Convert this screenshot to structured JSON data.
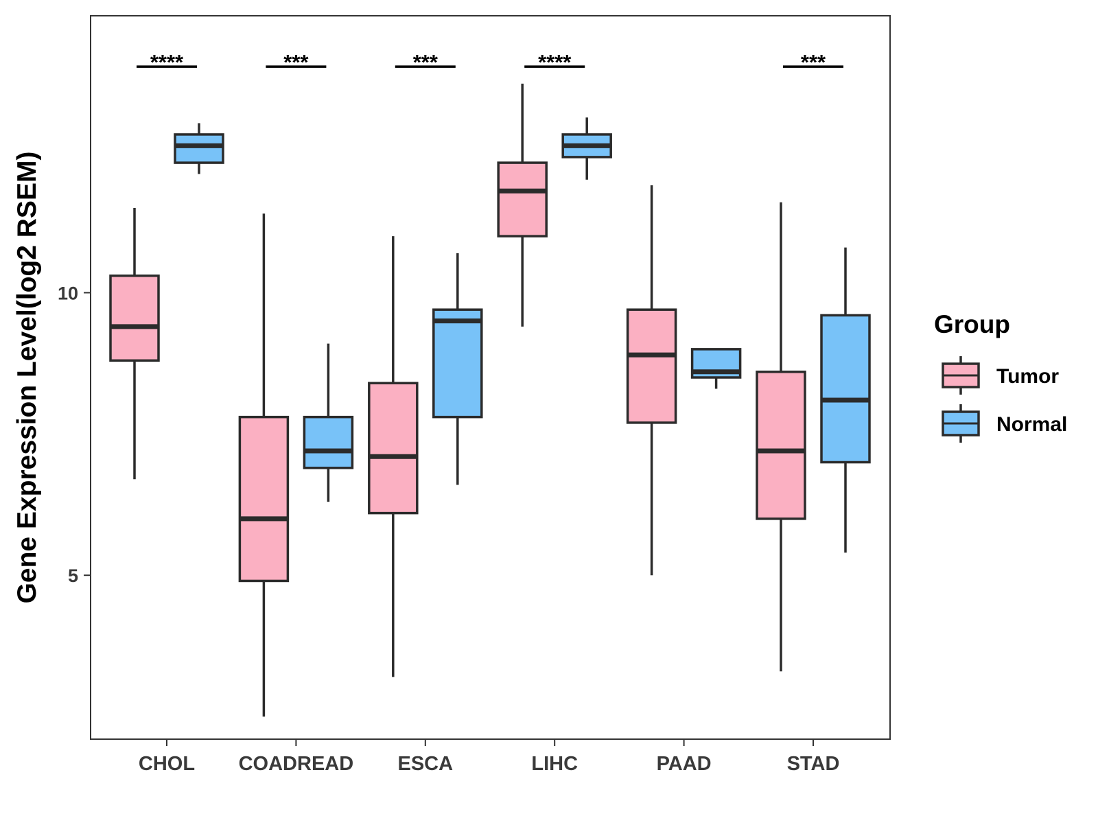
{
  "chart_data": {
    "type": "boxplot",
    "title": "",
    "xlabel": "",
    "ylabel": "Gene Expression Level(log2 RSEM)",
    "ylim": [
      2.1,
      14.9
    ],
    "yticks": [
      5,
      10
    ],
    "categories": [
      "CHOL",
      "COADREAD",
      "ESCA",
      "LIHC",
      "PAAD",
      "STAD"
    ],
    "legend": {
      "title": "Group",
      "position": "right",
      "entries": [
        "Tumor",
        "Normal"
      ]
    },
    "colors": {
      "Tumor": "#FBB0C2",
      "Normal": "#78C2F8",
      "outline": "#2b2b2b",
      "panel_border": "#333333"
    },
    "series": [
      {
        "name": "Tumor",
        "boxes": [
          {
            "min": 6.7,
            "q1": 8.8,
            "median": 9.4,
            "q3": 10.3,
            "max": 11.5
          },
          {
            "min": 2.5,
            "q1": 4.9,
            "median": 6.0,
            "q3": 7.8,
            "max": 11.4
          },
          {
            "min": 3.2,
            "q1": 6.1,
            "median": 7.1,
            "q3": 8.4,
            "max": 11.0
          },
          {
            "min": 9.4,
            "q1": 11.0,
            "median": 11.8,
            "q3": 12.3,
            "max": 13.7
          },
          {
            "min": 5.0,
            "q1": 7.7,
            "median": 8.9,
            "q3": 9.7,
            "max": 11.9
          },
          {
            "min": 3.3,
            "q1": 6.0,
            "median": 7.2,
            "q3": 8.6,
            "max": 11.6
          }
        ]
      },
      {
        "name": "Normal",
        "boxes": [
          {
            "min": 12.1,
            "q1": 12.3,
            "median": 12.6,
            "q3": 12.8,
            "max": 13.0
          },
          {
            "min": 6.3,
            "q1": 6.9,
            "median": 7.2,
            "q3": 7.8,
            "max": 9.1
          },
          {
            "min": 6.6,
            "q1": 7.8,
            "median": 9.5,
            "q3": 9.7,
            "max": 10.7
          },
          {
            "min": 12.0,
            "q1": 12.4,
            "median": 12.6,
            "q3": 12.8,
            "max": 13.1
          },
          {
            "min": 8.3,
            "q1": 8.5,
            "median": 8.6,
            "q3": 9.0,
            "max": 9.0
          },
          {
            "min": 5.4,
            "q1": 7.0,
            "median": 8.1,
            "q3": 9.6,
            "max": 10.8
          }
        ]
      }
    ],
    "significance": [
      {
        "category": "CHOL",
        "label": "****"
      },
      {
        "category": "COADREAD",
        "label": "***"
      },
      {
        "category": "ESCA",
        "label": "***"
      },
      {
        "category": "LIHC",
        "label": "****"
      },
      {
        "category": "PAAD",
        "label": ""
      },
      {
        "category": "STAD",
        "label": "***"
      }
    ],
    "significance_level": 14.0
  }
}
